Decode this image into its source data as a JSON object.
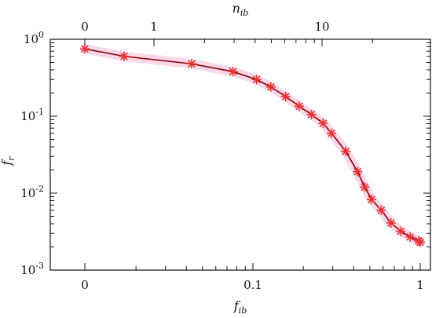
{
  "chart_data": {
    "type": "line",
    "xlabel": "f",
    "xlabel_sub": "ib",
    "ylabel": "f",
    "ylabel_sub": "r",
    "top_xlabel": "n",
    "top_xlabel_sub": "ib",
    "x_scale": "log",
    "y_scale": "log",
    "ylim": [
      0.001,
      1.0
    ],
    "x_ticks": [
      {
        "label": "0"
      },
      {
        "label": "0.1",
        "value": 0.1
      },
      {
        "label": "1",
        "value": 1.0
      }
    ],
    "top_ticks": [
      {
        "label": "0"
      },
      {
        "label": "1",
        "value": 1
      },
      {
        "label": "10",
        "value": 10
      }
    ],
    "y_ticks": [
      {
        "base": "10",
        "exp": "-3",
        "value": 0.001
      },
      {
        "base": "10",
        "exp": "-2",
        "value": 0.01
      },
      {
        "base": "10",
        "exp": "-1",
        "value": 0.1
      },
      {
        "base": "10",
        "exp": "0",
        "value": 1.0
      }
    ],
    "grid": false,
    "series": [
      {
        "color": "#8b0000",
        "marker_color": "#e8302f",
        "marker": "asterisk",
        "points": [
          {
            "x": 0,
            "y": 0.75
          },
          {
            "x": 0.017,
            "y": 0.6
          },
          {
            "x": 0.043,
            "y": 0.48
          },
          {
            "x": 0.076,
            "y": 0.38
          },
          {
            "x": 0.105,
            "y": 0.3
          },
          {
            "x": 0.128,
            "y": 0.24
          },
          {
            "x": 0.157,
            "y": 0.18
          },
          {
            "x": 0.189,
            "y": 0.135
          },
          {
            "x": 0.224,
            "y": 0.105
          },
          {
            "x": 0.263,
            "y": 0.081
          },
          {
            "x": 0.295,
            "y": 0.06
          },
          {
            "x": 0.359,
            "y": 0.035
          },
          {
            "x": 0.422,
            "y": 0.019
          },
          {
            "x": 0.466,
            "y": 0.012
          },
          {
            "x": 0.512,
            "y": 0.0083
          },
          {
            "x": 0.585,
            "y": 0.006
          },
          {
            "x": 0.668,
            "y": 0.0041
          },
          {
            "x": 0.765,
            "y": 0.0032
          },
          {
            "x": 0.871,
            "y": 0.0027
          },
          {
            "x": 0.98,
            "y": 0.0024
          },
          {
            "x": 1.0,
            "y": 0.0023
          }
        ]
      }
    ]
  }
}
